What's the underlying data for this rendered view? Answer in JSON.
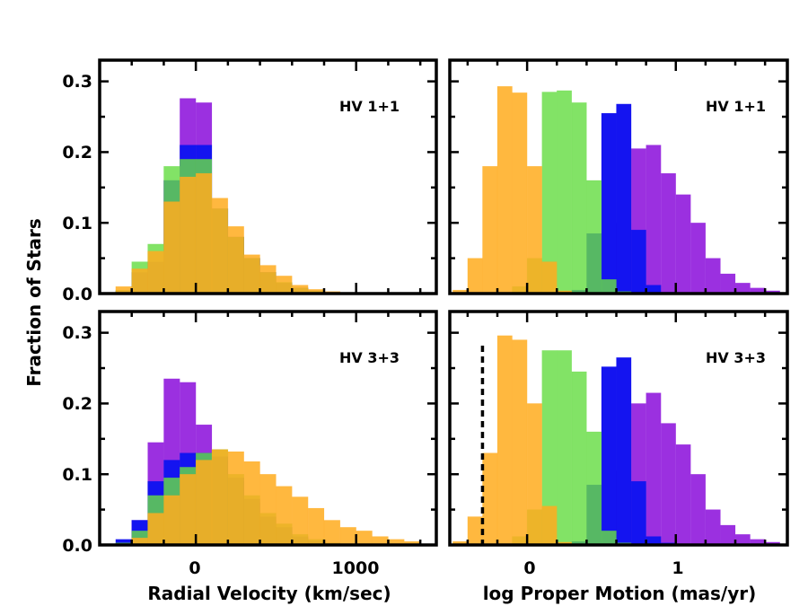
{
  "colors": {
    "purple": "#9b30e0",
    "blue": "#1414f0",
    "green": "#66dd44",
    "orange": "#ffac20",
    "green_under_orange": "#5cb03a",
    "green_over_blue": "#3f9e3a",
    "orange_over_green": "#d2ac26"
  },
  "figure": {
    "ylabel": "Fraction of Stars",
    "xlabel_left": "Radial Velocity (km/sec)",
    "xlabel_right": "log Proper Motion (mas/yr)",
    "ytick_labels": [
      "0.0",
      "0.1",
      "0.2",
      "0.3"
    ],
    "left_xtick_labels": [
      "0",
      "1000"
    ],
    "right_xtick_labels": [
      "0",
      "1"
    ]
  },
  "chart_data": [
    {
      "type": "bar",
      "title": "HV 1+1",
      "label": "HV 1+1",
      "xlabel": "",
      "ylabel": "Fraction of Stars",
      "xlim": [
        -600,
        1500
      ],
      "ylim": [
        0,
        0.33
      ],
      "yticks": [
        0,
        0.1,
        0.2,
        0.3
      ],
      "xticks": [
        0,
        1000
      ],
      "bin_width": 100,
      "bin_edges": [
        -500,
        -400,
        -300,
        -200,
        -100,
        0,
        100,
        200,
        300,
        400,
        500,
        600,
        700,
        800,
        900,
        1000,
        1100,
        1200,
        1300,
        1400
      ],
      "series": [
        {
          "name": "purple",
          "values": [
            0,
            0.01,
            0.04,
            0.16,
            0.276,
            0.27,
            0.12,
            0.08,
            0.05,
            0.03,
            0.015,
            0.008,
            0.004,
            0,
            0,
            0,
            0,
            0,
            0
          ]
        },
        {
          "name": "blue",
          "values": [
            0.004,
            0.03,
            0.045,
            0.16,
            0.21,
            0.21,
            0.12,
            0.08,
            0.05,
            0.03,
            0.015,
            0.008,
            0.004,
            0,
            0,
            0,
            0,
            0,
            0
          ]
        },
        {
          "name": "green",
          "values": [
            0.005,
            0.045,
            0.07,
            0.18,
            0.19,
            0.19,
            0.12,
            0.08,
            0.05,
            0.03,
            0.016,
            0.008,
            0.004,
            0,
            0,
            0,
            0,
            0,
            0
          ]
        },
        {
          "name": "orange",
          "values": [
            0.01,
            0.035,
            0.06,
            0.13,
            0.165,
            0.17,
            0.135,
            0.095,
            0.055,
            0.04,
            0.025,
            0.012,
            0.006,
            0.003,
            0.001,
            0,
            0,
            0,
            0
          ]
        }
      ]
    },
    {
      "type": "bar",
      "title": "HV 1+1",
      "label": "HV 1+1",
      "xlabel": "",
      "ylabel": "",
      "xlim": [
        -0.52,
        1.75
      ],
      "ylim": [
        0,
        0.33
      ],
      "yticks": [
        0,
        0.1,
        0.2,
        0.3
      ],
      "xticks": [
        0,
        1
      ],
      "bin_width": 0.1,
      "bin_edges": [
        -0.5,
        -0.4,
        -0.3,
        -0.2,
        -0.1,
        0,
        0.1,
        0.2,
        0.3,
        0.4,
        0.5,
        0.6,
        0.7,
        0.8,
        0.9,
        1,
        1.1,
        1.2,
        1.3,
        1.4,
        1.5,
        1.6,
        1.7
      ],
      "series": [
        {
          "name": "purple",
          "values": [
            0,
            0,
            0,
            0,
            0,
            0,
            0,
            0,
            0,
            0.005,
            0.03,
            0.1,
            0.205,
            0.21,
            0.17,
            0.14,
            0.1,
            0.05,
            0.028,
            0.015,
            0.008,
            0.004
          ]
        },
        {
          "name": "blue",
          "values": [
            0,
            0,
            0,
            0,
            0,
            0,
            0,
            0,
            0.005,
            0.085,
            0.255,
            0.268,
            0.09,
            0.012,
            0.002,
            0,
            0,
            0,
            0,
            0,
            0,
            0
          ]
        },
        {
          "name": "green",
          "values": [
            0,
            0,
            0,
            0,
            0.01,
            0.05,
            0.285,
            0.287,
            0.27,
            0.16,
            0.02,
            0.003,
            0,
            0,
            0,
            0,
            0,
            0,
            0,
            0,
            0,
            0
          ]
        },
        {
          "name": "orange",
          "values": [
            0.005,
            0.05,
            0.18,
            0.293,
            0.284,
            0.18,
            0.045,
            0.004,
            0,
            0,
            0,
            0,
            0,
            0,
            0,
            0,
            0,
            0,
            0,
            0,
            0,
            0
          ]
        }
      ]
    },
    {
      "type": "bar",
      "title": "HV 3+3",
      "label": "HV 3+3",
      "xlabel": "Radial Velocity (km/sec)",
      "ylabel": "Fraction of Stars",
      "xlim": [
        -600,
        1500
      ],
      "ylim": [
        0,
        0.33
      ],
      "yticks": [
        0,
        0.1,
        0.2,
        0.3
      ],
      "xticks": [
        0,
        1000
      ],
      "bin_width": 100,
      "bin_edges": [
        -500,
        -400,
        -300,
        -200,
        -100,
        0,
        100,
        200,
        300,
        400,
        500,
        600,
        700,
        800,
        900,
        1000,
        1100,
        1200,
        1300,
        1400
      ],
      "series": [
        {
          "name": "purple",
          "values": [
            0.002,
            0.035,
            0.145,
            0.235,
            0.23,
            0.17,
            0.12,
            0.09,
            0.06,
            0.035,
            0.02,
            0.01,
            0.005,
            0.002,
            0,
            0,
            0,
            0,
            0
          ]
        },
        {
          "name": "blue",
          "values": [
            0.008,
            0.035,
            0.09,
            0.12,
            0.13,
            0.13,
            0.125,
            0.095,
            0.065,
            0.04,
            0.025,
            0.012,
            0.006,
            0.003,
            0,
            0,
            0,
            0,
            0
          ]
        },
        {
          "name": "green",
          "values": [
            0.003,
            0.02,
            0.07,
            0.095,
            0.11,
            0.13,
            0.135,
            0.1,
            0.07,
            0.045,
            0.03,
            0.015,
            0.008,
            0.003,
            0,
            0,
            0,
            0,
            0
          ]
        },
        {
          "name": "orange",
          "values": [
            0,
            0.01,
            0.045,
            0.07,
            0.1,
            0.12,
            0.135,
            0.132,
            0.118,
            0.1,
            0.083,
            0.068,
            0.052,
            0.035,
            0.025,
            0.02,
            0.012,
            0.008,
            0.005
          ]
        }
      ]
    },
    {
      "type": "bar",
      "title": "HV 3+3",
      "label": "HV 3+3",
      "xlabel": "log Proper Motion (mas/yr)",
      "ylabel": "",
      "xlim": [
        -0.52,
        1.75
      ],
      "ylim": [
        0,
        0.33
      ],
      "yticks": [
        0,
        0.1,
        0.2,
        0.3
      ],
      "xticks": [
        0,
        1
      ],
      "bin_width": 0.1,
      "bin_edges": [
        -0.5,
        -0.4,
        -0.3,
        -0.2,
        -0.1,
        0,
        0.1,
        0.2,
        0.3,
        0.4,
        0.5,
        0.6,
        0.7,
        0.8,
        0.9,
        1,
        1.1,
        1.2,
        1.3,
        1.4,
        1.5,
        1.6,
        1.7
      ],
      "reference_line": {
        "x": -0.3,
        "style": "dashed"
      },
      "series": [
        {
          "name": "purple",
          "values": [
            0,
            0,
            0,
            0,
            0,
            0,
            0,
            0,
            0,
            0.005,
            0.03,
            0.105,
            0.2,
            0.215,
            0.172,
            0.142,
            0.1,
            0.05,
            0.028,
            0.015,
            0.008,
            0.004
          ]
        },
        {
          "name": "blue",
          "values": [
            0,
            0,
            0,
            0,
            0,
            0,
            0,
            0,
            0.005,
            0.085,
            0.252,
            0.265,
            0.09,
            0.012,
            0.003,
            0,
            0,
            0,
            0,
            0,
            0,
            0
          ]
        },
        {
          "name": "green",
          "values": [
            0,
            0,
            0,
            0,
            0.012,
            0.05,
            0.275,
            0.275,
            0.245,
            0.16,
            0.02,
            0.003,
            0,
            0,
            0,
            0,
            0,
            0,
            0,
            0,
            0,
            0
          ]
        },
        {
          "name": "orange",
          "values": [
            0.005,
            0.04,
            0.13,
            0.296,
            0.29,
            0.2,
            0.055,
            0.004,
            0,
            0,
            0,
            0,
            0,
            0,
            0,
            0,
            0,
            0,
            0,
            0,
            0,
            0
          ]
        }
      ]
    }
  ]
}
